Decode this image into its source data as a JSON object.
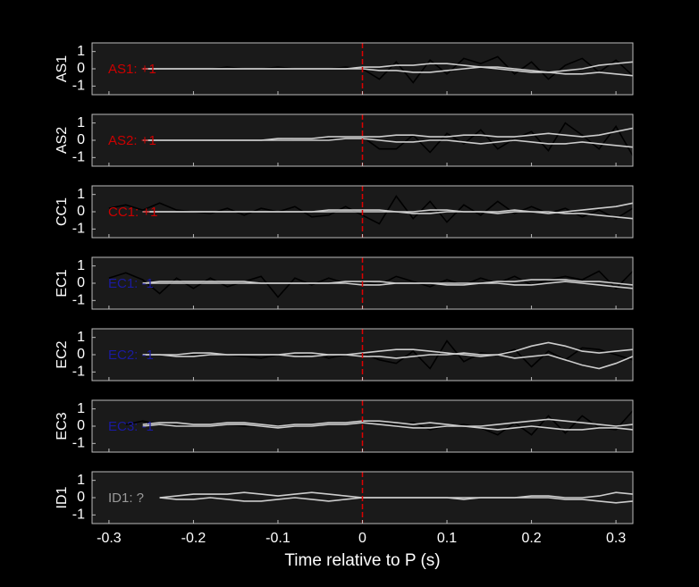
{
  "chart_data": [
    {
      "type": "line",
      "ylabel": "AS1",
      "annotation": "AS1: +1",
      "annotation_color": "#cc0000",
      "x": [
        -0.3,
        -0.28,
        -0.26,
        -0.24,
        -0.22,
        -0.2,
        -0.18,
        -0.16,
        -0.14,
        -0.12,
        -0.1,
        -0.08,
        -0.06,
        -0.04,
        -0.02,
        0,
        0.02,
        0.04,
        0.06,
        0.08,
        0.1,
        0.12,
        0.14,
        0.16,
        0.18,
        0.2,
        0.22,
        0.24,
        0.26,
        0.28,
        0.3,
        0.32
      ],
      "series": [
        {
          "color": "#000000",
          "values": [
            null,
            null,
            null,
            0,
            0,
            0,
            0,
            0.1,
            0,
            0,
            0.1,
            0,
            0,
            0,
            0.1,
            0,
            -0.6,
            0.4,
            -0.8,
            0.5,
            -0.3,
            0.6,
            0.3,
            0.7,
            -0.3,
            0.4,
            -0.6,
            0.2,
            0.6,
            -0.2,
            0.5,
            -0.4
          ]
        },
        {
          "color": "#cccccc",
          "values": [
            null,
            null,
            0,
            0,
            0,
            0,
            0,
            0,
            0,
            0,
            0,
            0,
            0,
            0,
            0,
            0.1,
            0.1,
            0.2,
            0.2,
            0.3,
            0.3,
            0.2,
            0.1,
            0,
            -0.1,
            -0.2,
            -0.2,
            -0.1,
            0,
            0.2,
            0.3,
            0.4
          ]
        },
        {
          "color": "#cccccc",
          "values": [
            null,
            null,
            0,
            0,
            0,
            0,
            0,
            0,
            0,
            0,
            0,
            0,
            0,
            0,
            0,
            0,
            -0.1,
            -0.1,
            -0.2,
            -0.2,
            -0.1,
            0,
            0.1,
            0.1,
            0,
            -0.1,
            -0.2,
            -0.3,
            -0.3,
            -0.2,
            -0.3,
            -0.4
          ]
        }
      ],
      "xlim": [
        -0.32,
        0.32
      ],
      "xticks": [
        -0.3,
        -0.2,
        -0.1,
        0,
        0.1,
        0.2,
        0.3
      ],
      "ylim": [
        -1.5,
        1.5
      ],
      "yticks": [
        -1,
        0,
        1
      ],
      "vline_x": 0,
      "vline_color": "#dd0000"
    },
    {
      "type": "line",
      "ylabel": "AS2",
      "annotation": "AS2: +1",
      "annotation_color": "#cc0000",
      "x": [
        -0.3,
        -0.28,
        -0.26,
        -0.24,
        -0.22,
        -0.2,
        -0.18,
        -0.16,
        -0.14,
        -0.12,
        -0.1,
        -0.08,
        -0.06,
        -0.04,
        -0.02,
        0,
        0.02,
        0.04,
        0.06,
        0.08,
        0.1,
        0.12,
        0.14,
        0.16,
        0.18,
        0.2,
        0.22,
        0.24,
        0.26,
        0.28,
        0.3,
        0.32
      ],
      "series": [
        {
          "color": "#000000",
          "values": [
            null,
            null,
            0,
            0,
            0,
            0,
            0,
            0,
            0,
            0,
            0,
            0.1,
            0.1,
            0.1,
            0.2,
            0.2,
            -0.5,
            -0.5,
            0.3,
            -0.7,
            0.4,
            -0.2,
            0.6,
            -0.5,
            0.1,
            0.5,
            -0.6,
            1.0,
            0.3,
            -0.5,
            0.8,
            -0.9
          ]
        },
        {
          "color": "#cccccc",
          "values": [
            null,
            null,
            0,
            0,
            0,
            0,
            0,
            0,
            0,
            0,
            0.1,
            0.1,
            0.1,
            0.2,
            0.2,
            0.2,
            0.2,
            0.3,
            0.3,
            0.2,
            0.2,
            0.3,
            0.3,
            0.2,
            0.2,
            0.3,
            0.4,
            0.3,
            0.2,
            0.3,
            0.5,
            0.7
          ]
        },
        {
          "color": "#cccccc",
          "values": [
            null,
            null,
            0,
            0,
            0,
            0,
            0,
            0,
            0,
            0,
            0,
            0,
            0,
            0,
            0.1,
            0.1,
            0,
            -0.1,
            -0.1,
            0,
            0,
            -0.1,
            -0.2,
            -0.1,
            0,
            -0.1,
            -0.2,
            -0.2,
            -0.1,
            -0.2,
            -0.3,
            -0.4
          ]
        }
      ],
      "xlim": [
        -0.32,
        0.32
      ],
      "xticks": [
        -0.3,
        -0.2,
        -0.1,
        0,
        0.1,
        0.2,
        0.3
      ],
      "ylim": [
        -1.5,
        1.5
      ],
      "yticks": [
        -1,
        0,
        1
      ],
      "vline_x": 0,
      "vline_color": "#dd0000"
    },
    {
      "type": "line",
      "ylabel": "CC1",
      "annotation": "CC1: +1",
      "annotation_color": "#cc0000",
      "x": [
        -0.3,
        -0.28,
        -0.26,
        -0.24,
        -0.22,
        -0.2,
        -0.18,
        -0.16,
        -0.14,
        -0.12,
        -0.1,
        -0.08,
        -0.06,
        -0.04,
        -0.02,
        0,
        0.02,
        0.04,
        0.06,
        0.08,
        0.1,
        0.12,
        0.14,
        0.16,
        0.18,
        0.2,
        0.22,
        0.24,
        0.26,
        0.28,
        0.3,
        0.32
      ],
      "series": [
        {
          "color": "#000000",
          "values": [
            0.2,
            0.4,
            0.1,
            0.5,
            0.1,
            0,
            -0.1,
            0.2,
            -0.2,
            0.2,
            0,
            0.3,
            -0.3,
            -0.2,
            0.3,
            -0.2,
            -0.7,
            0.9,
            -0.4,
            0.6,
            -0.6,
            0.4,
            -0.2,
            0.6,
            -0.1,
            0.3,
            -0.1,
            0.2,
            -0.3,
            0.1,
            -0.4,
            0.2
          ]
        },
        {
          "color": "#cccccc",
          "values": [
            null,
            null,
            0,
            0,
            0,
            0,
            0,
            0,
            0,
            0,
            0,
            0,
            0,
            0.1,
            0.1,
            0.1,
            0.1,
            0,
            0,
            0.1,
            0.1,
            0,
            0,
            0,
            0.1,
            0,
            -0.1,
            0,
            0.1,
            0.2,
            0.3,
            0.5
          ]
        },
        {
          "color": "#cccccc",
          "values": [
            null,
            null,
            0,
            0,
            0,
            0,
            0,
            0,
            0,
            0,
            0,
            0,
            0,
            0,
            0,
            0,
            0,
            0,
            -0.1,
            -0.1,
            0,
            0,
            0,
            -0.1,
            0,
            0,
            0,
            -0.1,
            -0.1,
            -0.2,
            -0.3,
            -0.4
          ]
        }
      ],
      "xlim": [
        -0.32,
        0.32
      ],
      "xticks": [
        -0.3,
        -0.2,
        -0.1,
        0,
        0.1,
        0.2,
        0.3
      ],
      "ylim": [
        -1.5,
        1.5
      ],
      "yticks": [
        -1,
        0,
        1
      ],
      "vline_x": 0,
      "vline_color": "#dd0000"
    },
    {
      "type": "line",
      "ylabel": "EC1",
      "annotation": "EC1: -1",
      "annotation_color": "#1a1aa0",
      "x": [
        -0.3,
        -0.28,
        -0.26,
        -0.24,
        -0.22,
        -0.2,
        -0.18,
        -0.16,
        -0.14,
        -0.12,
        -0.1,
        -0.08,
        -0.06,
        -0.04,
        -0.02,
        0,
        0.02,
        0.04,
        0.06,
        0.08,
        0.1,
        0.12,
        0.14,
        0.16,
        0.18,
        0.2,
        0.22,
        0.24,
        0.26,
        0.28,
        0.3,
        0.32
      ],
      "series": [
        {
          "color": "#000000",
          "values": [
            0.3,
            0.6,
            0.2,
            -0.6,
            0.3,
            -0.3,
            0.3,
            -0.2,
            0.1,
            0.4,
            -0.8,
            0.3,
            -0.1,
            0.3,
            0,
            0.1,
            -0.1,
            0.4,
            0.1,
            -0.2,
            0.2,
            -0.1,
            0.3,
            0,
            0.4,
            -0.1,
            0.2,
            0.4,
            0.2,
            0.7,
            -0.3,
            0.7
          ]
        },
        {
          "color": "#cccccc",
          "values": [
            null,
            null,
            0,
            0.1,
            0.1,
            0.1,
            0.1,
            0.1,
            0.1,
            0,
            0,
            0,
            0,
            0,
            0.1,
            0.1,
            0.1,
            0,
            0,
            0,
            0,
            0,
            0,
            0.1,
            0.1,
            0.2,
            0.2,
            0.2,
            0.1,
            0.1,
            0,
            -0.1
          ]
        },
        {
          "color": "#cccccc",
          "values": [
            null,
            null,
            0,
            0,
            0,
            0,
            0,
            0,
            0,
            0,
            0,
            0,
            0,
            0,
            0,
            -0.1,
            -0.1,
            0,
            0,
            0,
            -0.1,
            -0.1,
            0,
            0,
            -0.1,
            -0.1,
            0,
            0.1,
            0,
            -0.1,
            -0.2,
            -0.3
          ]
        }
      ],
      "xlim": [
        -0.32,
        0.32
      ],
      "xticks": [
        -0.3,
        -0.2,
        -0.1,
        0,
        0.1,
        0.2,
        0.3
      ],
      "ylim": [
        -1.5,
        1.5
      ],
      "yticks": [
        -1,
        0,
        1
      ],
      "vline_x": 0,
      "vline_color": "#dd0000"
    },
    {
      "type": "line",
      "ylabel": "EC2",
      "annotation": "EC2: -1",
      "annotation_color": "#1a1aa0",
      "x": [
        -0.3,
        -0.28,
        -0.26,
        -0.24,
        -0.22,
        -0.2,
        -0.18,
        -0.16,
        -0.14,
        -0.12,
        -0.1,
        -0.08,
        -0.06,
        -0.04,
        -0.02,
        0,
        0.02,
        0.04,
        0.06,
        0.08,
        0.1,
        0.12,
        0.14,
        0.16,
        0.18,
        0.2,
        0.22,
        0.24,
        0.26,
        0.28,
        0.3,
        0.32
      ],
      "series": [
        {
          "color": "#000000",
          "values": [
            null,
            null,
            0,
            0,
            -0.1,
            0,
            0.1,
            0,
            -0.1,
            -0.2,
            0,
            -0.1,
            0.1,
            -0.2,
            0,
            0.1,
            -0.3,
            -0.5,
            0.2,
            -0.8,
            0.8,
            -0.4,
            0.1,
            0,
            0.3,
            -0.7,
            0.2,
            -0.3,
            0.4,
            0.3,
            0,
            -0.3
          ]
        },
        {
          "color": "#cccccc",
          "values": [
            null,
            null,
            0,
            0,
            -0.1,
            -0.1,
            0,
            0,
            0,
            0,
            0,
            0.1,
            0.1,
            0,
            0,
            0.1,
            0.2,
            0.3,
            0.3,
            0.2,
            0.1,
            0,
            -0.1,
            0,
            0.2,
            0.5,
            0.7,
            0.5,
            0.2,
            0.1,
            0.2,
            0.3
          ]
        },
        {
          "color": "#cccccc",
          "values": [
            null,
            null,
            0,
            0,
            0,
            0.1,
            0.1,
            0,
            0,
            0,
            0,
            -0.1,
            -0.1,
            0,
            0,
            -0.1,
            -0.1,
            -0.2,
            -0.1,
            0,
            0,
            0.1,
            0,
            0,
            -0.2,
            -0.1,
            0,
            -0.3,
            -0.6,
            -0.8,
            -0.5,
            -0.1
          ]
        }
      ],
      "xlim": [
        -0.32,
        0.32
      ],
      "xticks": [
        -0.3,
        -0.2,
        -0.1,
        0,
        0.1,
        0.2,
        0.3
      ],
      "ylim": [
        -1.5,
        1.5
      ],
      "yticks": [
        -1,
        0,
        1
      ],
      "vline_x": 0,
      "vline_color": "#dd0000"
    },
    {
      "type": "line",
      "ylabel": "EC3",
      "annotation": "EC3: -1",
      "annotation_color": "#1a1aa0",
      "x": [
        -0.3,
        -0.28,
        -0.26,
        -0.24,
        -0.22,
        -0.2,
        -0.18,
        -0.16,
        -0.14,
        -0.12,
        -0.1,
        -0.08,
        -0.06,
        -0.04,
        -0.02,
        0,
        0.02,
        0.04,
        0.06,
        0.08,
        0.1,
        0.12,
        0.14,
        0.16,
        0.18,
        0.2,
        0.22,
        0.24,
        0.26,
        0.28,
        0.3,
        0.32
      ],
      "series": [
        {
          "color": "#000000",
          "values": [
            null,
            0.1,
            0.3,
            0.1,
            0,
            0,
            0,
            0.1,
            0,
            0,
            0,
            0.1,
            0,
            0.1,
            0.2,
            0.2,
            0.3,
            0.1,
            0.2,
            -0.2,
            0,
            0.1,
            -0.1,
            -0.5,
            0.2,
            -0.5,
            0.6,
            -0.4,
            0.6,
            -0.1,
            -0.2,
            0.9
          ]
        },
        {
          "color": "#cccccc",
          "values": [
            null,
            null,
            0.1,
            0.2,
            0.2,
            0.1,
            0.1,
            0.2,
            0.2,
            0.1,
            0,
            0.1,
            0.1,
            0.2,
            0.2,
            0.3,
            0.3,
            0.2,
            0.1,
            0.2,
            0.1,
            0,
            0,
            0.1,
            0.2,
            0.3,
            0.4,
            0.3,
            0.2,
            0.1,
            0,
            0.1
          ]
        },
        {
          "color": "#cccccc",
          "values": [
            null,
            null,
            0,
            0.1,
            0,
            0,
            0,
            0.1,
            0.1,
            0,
            -0.1,
            0,
            0,
            0.1,
            0.1,
            0.2,
            0.1,
            0,
            -0.1,
            -0.1,
            0,
            0,
            -0.1,
            -0.2,
            -0.1,
            0,
            -0.1,
            -0.2,
            -0.2,
            -0.1,
            -0.1,
            -0.2
          ]
        }
      ],
      "xlim": [
        -0.32,
        0.32
      ],
      "xticks": [
        -0.3,
        -0.2,
        -0.1,
        0,
        0.1,
        0.2,
        0.3
      ],
      "ylim": [
        -1.5,
        1.5
      ],
      "yticks": [
        -1,
        0,
        1
      ],
      "vline_x": 0,
      "vline_color": "#dd0000"
    },
    {
      "type": "line",
      "ylabel": "ID1",
      "annotation": "ID1: ?",
      "annotation_color": "#999999",
      "xlabel": "Time relative to P (s)",
      "show_xtick_labels": true,
      "x": [
        -0.3,
        -0.28,
        -0.26,
        -0.24,
        -0.22,
        -0.2,
        -0.18,
        -0.16,
        -0.14,
        -0.12,
        -0.1,
        -0.08,
        -0.06,
        -0.04,
        -0.02,
        0,
        0.02,
        0.04,
        0.06,
        0.08,
        0.1,
        0.12,
        0.14,
        0.16,
        0.18,
        0.2,
        0.22,
        0.24,
        0.26,
        0.28,
        0.3,
        0.32
      ],
      "series": [
        {
          "color": "#cccccc",
          "values": [
            null,
            null,
            null,
            0,
            0.1,
            0.2,
            0.2,
            0.2,
            0.3,
            0.2,
            0.1,
            0.2,
            0.3,
            0.2,
            0.1,
            0,
            0,
            0,
            0,
            0,
            0,
            0,
            0,
            0,
            0,
            0.1,
            0.1,
            0,
            0,
            0.1,
            0.3,
            0.2
          ]
        },
        {
          "color": "#cccccc",
          "values": [
            null,
            null,
            null,
            0,
            -0.1,
            -0.1,
            0,
            -0.1,
            -0.2,
            -0.2,
            -0.1,
            0,
            -0.1,
            -0.2,
            -0.1,
            0,
            0,
            0,
            0,
            0,
            0,
            -0.1,
            0,
            0,
            0,
            0,
            0,
            -0.1,
            -0.1,
            -0.2,
            -0.3,
            -0.2
          ]
        }
      ],
      "xlim": [
        -0.32,
        0.32
      ],
      "xticks": [
        -0.3,
        -0.2,
        -0.1,
        0,
        0.1,
        0.2,
        0.3
      ],
      "ylim": [
        -1.5,
        1.5
      ],
      "yticks": [
        -1,
        0,
        1
      ],
      "vline_x": 0,
      "vline_color": "#dd0000"
    }
  ]
}
